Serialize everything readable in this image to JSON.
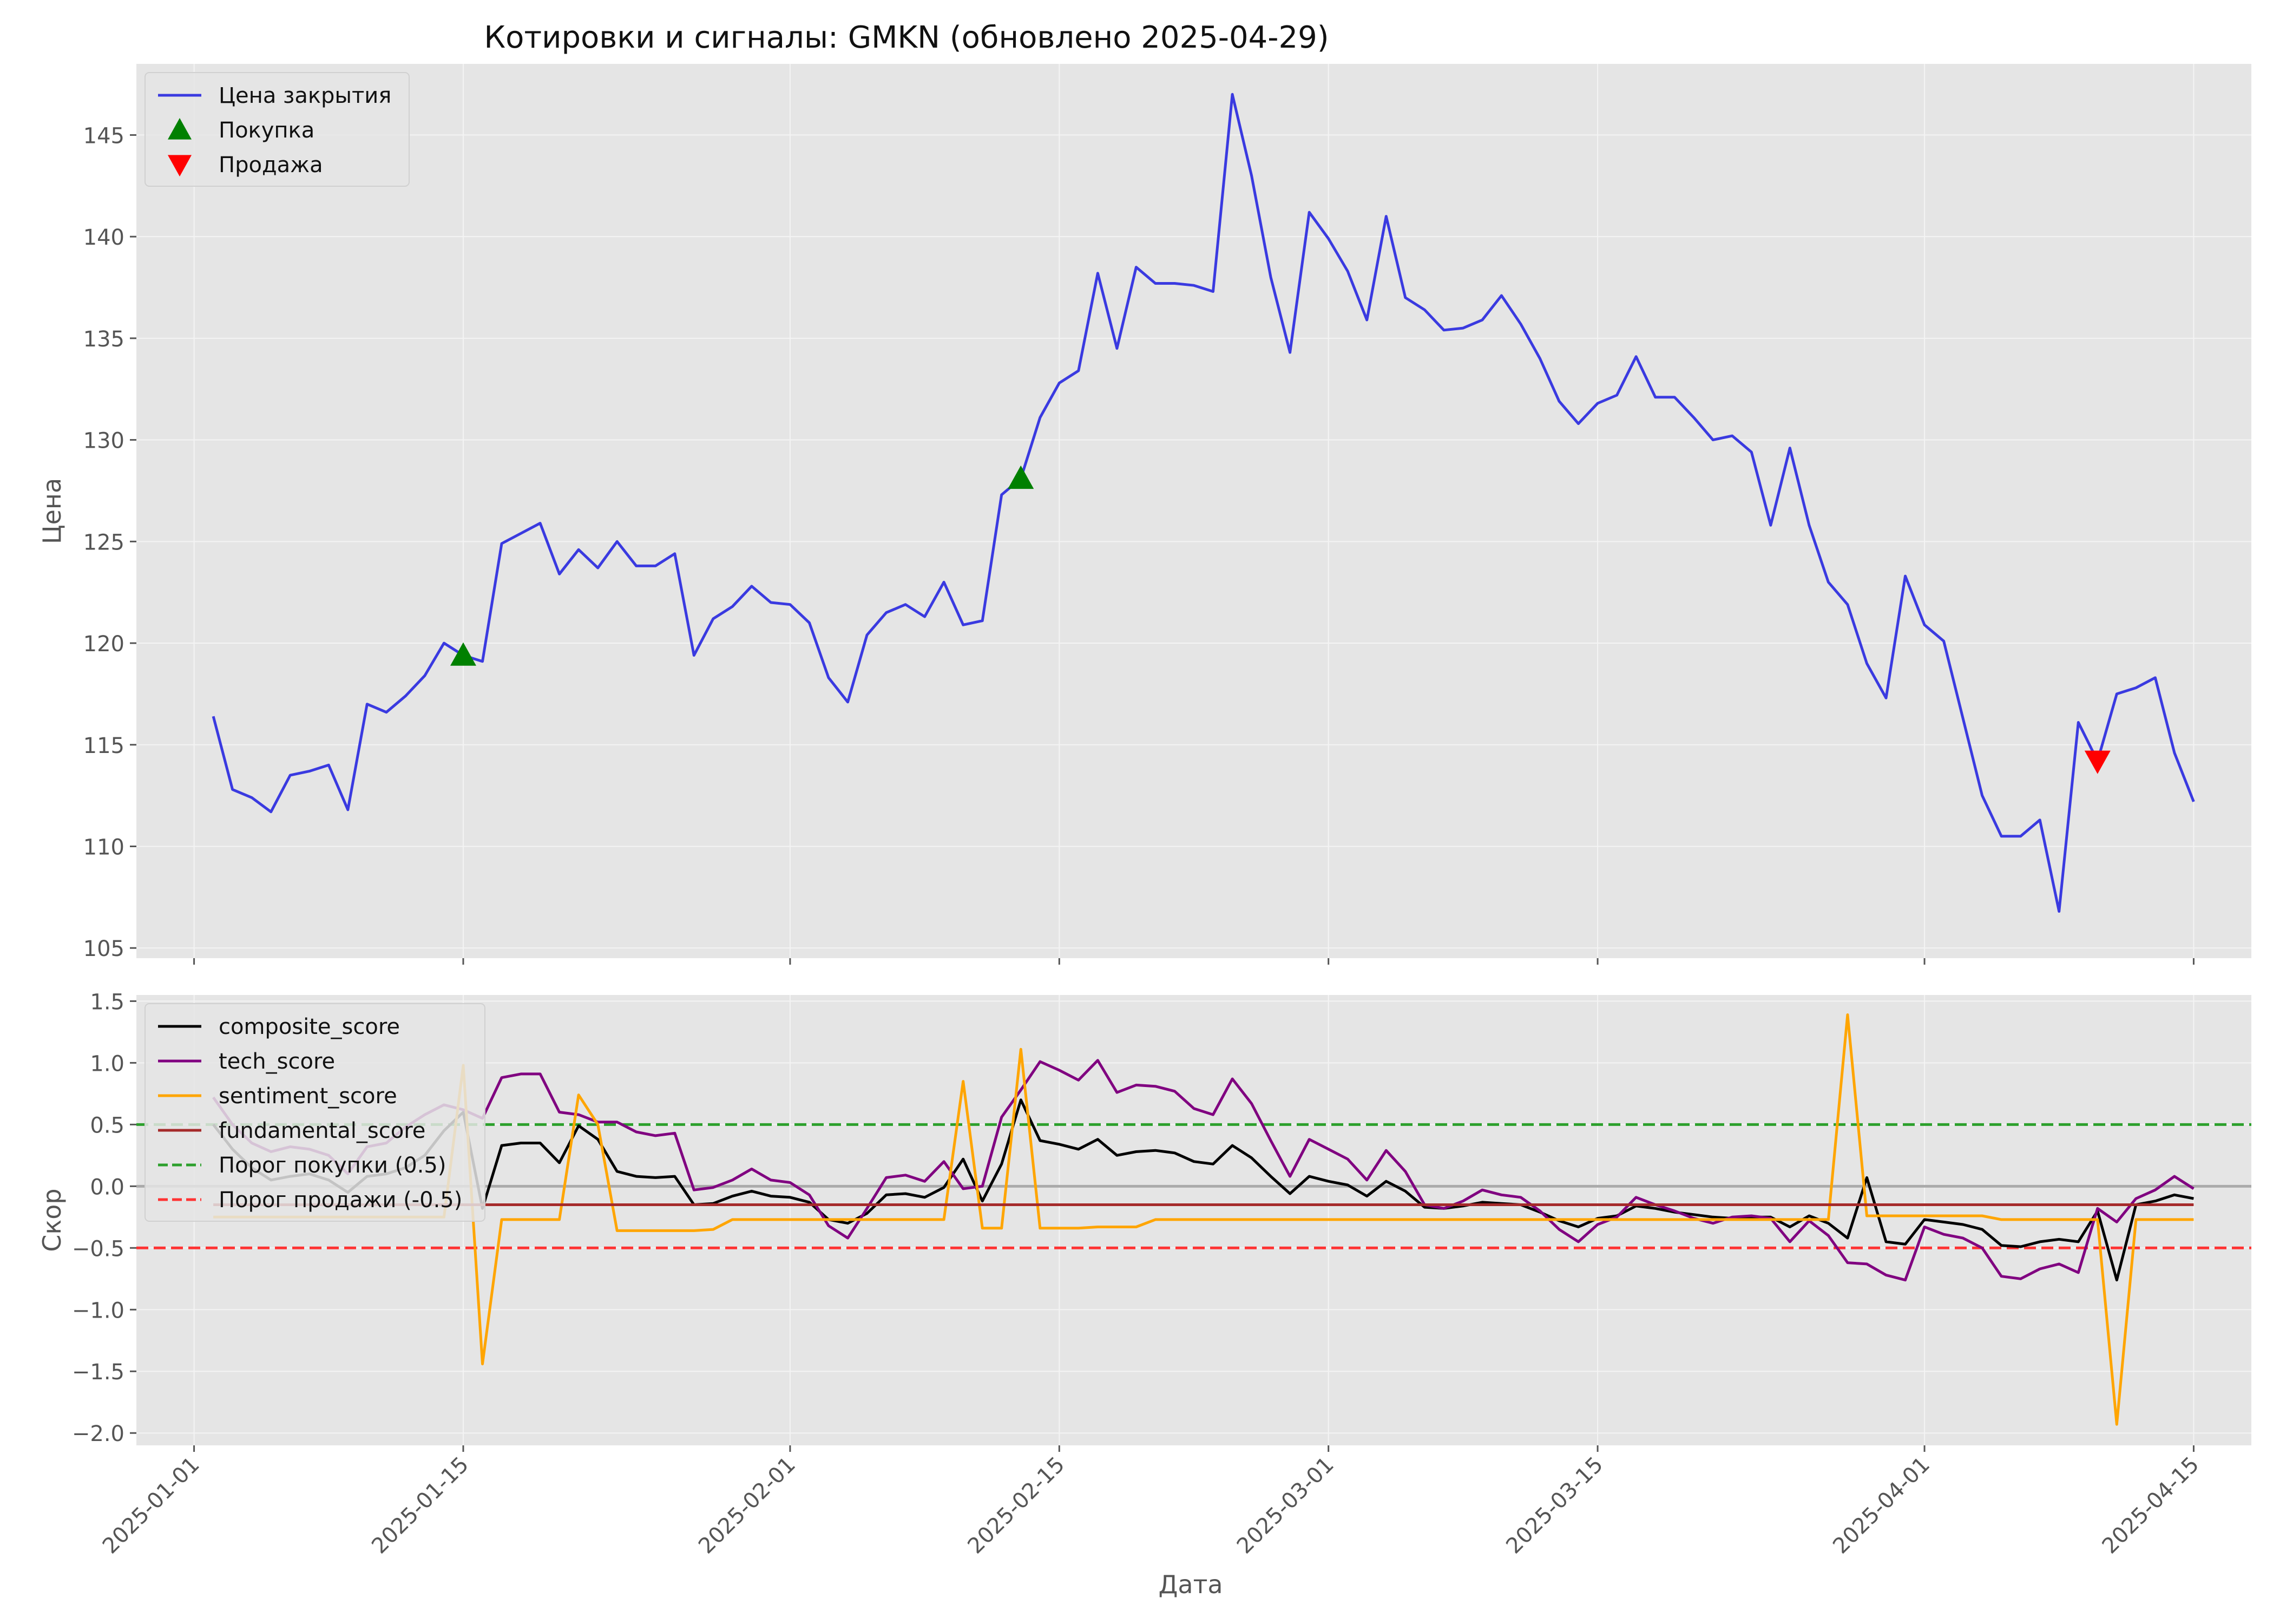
{
  "chart_data": {
    "title": "Котировки и сигналы: GMKN (обновлено 2025-04-29)",
    "x_axis": {
      "label": "Дата",
      "range": [
        "2024-12-29",
        "2025-04-18"
      ],
      "ticks": [
        "2025-01-01",
        "2025-01-15",
        "2025-02-01",
        "2025-02-15",
        "2025-03-01",
        "2025-03-15",
        "2025-04-01",
        "2025-04-15"
      ]
    },
    "style": {
      "grid": true,
      "background": "#e5e5e5",
      "grid_color": "#f4f4f4"
    },
    "panels": [
      {
        "id": "price",
        "type": "line",
        "ylabel": "Цена",
        "ylim": [
          104.5,
          148.5
        ],
        "yticks": [
          105,
          110,
          115,
          120,
          125,
          130,
          135,
          140,
          145
        ],
        "legend_position": "upper-left",
        "series": [
          {
            "name": "Цена закрытия",
            "color": "#3a3ae0",
            "x": [
              "2025-01-02",
              "2025-01-03",
              "2025-01-04",
              "2025-01-05",
              "2025-01-06",
              "2025-01-07",
              "2025-01-08",
              "2025-01-09",
              "2025-01-10",
              "2025-01-11",
              "2025-01-12",
              "2025-01-13",
              "2025-01-14",
              "2025-01-15",
              "2025-01-16",
              "2025-01-17",
              "2025-01-18",
              "2025-01-19",
              "2025-01-20",
              "2025-01-21",
              "2025-01-22",
              "2025-01-23",
              "2025-01-24",
              "2025-01-25",
              "2025-01-26",
              "2025-01-27",
              "2025-01-28",
              "2025-01-29",
              "2025-01-30",
              "2025-01-31",
              "2025-02-01",
              "2025-02-02",
              "2025-02-03",
              "2025-02-04",
              "2025-02-05",
              "2025-02-06",
              "2025-02-07",
              "2025-02-08",
              "2025-02-09",
              "2025-02-10",
              "2025-02-11",
              "2025-02-12",
              "2025-02-13",
              "2025-02-14",
              "2025-02-15",
              "2025-02-16",
              "2025-02-17",
              "2025-02-18",
              "2025-02-19",
              "2025-02-20",
              "2025-02-21",
              "2025-02-22",
              "2025-02-23",
              "2025-02-24",
              "2025-02-25",
              "2025-02-26",
              "2025-02-27",
              "2025-02-28",
              "2025-03-01",
              "2025-03-02",
              "2025-03-03",
              "2025-03-04",
              "2025-03-05",
              "2025-03-06",
              "2025-03-07",
              "2025-03-08",
              "2025-03-09",
              "2025-03-10",
              "2025-03-11",
              "2025-03-12",
              "2025-03-13",
              "2025-03-14",
              "2025-03-15",
              "2025-03-16",
              "2025-03-17",
              "2025-03-18",
              "2025-03-19",
              "2025-03-20",
              "2025-03-21",
              "2025-03-22",
              "2025-03-23",
              "2025-03-24",
              "2025-03-25",
              "2025-03-26",
              "2025-03-27",
              "2025-03-28",
              "2025-03-29",
              "2025-03-30",
              "2025-03-31",
              "2025-04-01",
              "2025-04-02",
              "2025-04-03",
              "2025-04-04",
              "2025-04-05",
              "2025-04-06",
              "2025-04-07",
              "2025-04-08",
              "2025-04-09",
              "2025-04-10",
              "2025-04-11",
              "2025-04-12",
              "2025-04-13",
              "2025-04-14",
              "2025-04-15"
            ],
            "y": [
              116.4,
              112.8,
              112.4,
              111.7,
              113.5,
              113.7,
              114.0,
              111.8,
              117.0,
              116.6,
              117.4,
              118.4,
              120.0,
              119.4,
              119.1,
              124.9,
              125.4,
              125.9,
              123.4,
              124.6,
              123.7,
              125.0,
              123.8,
              123.8,
              124.4,
              119.4,
              121.2,
              121.8,
              122.8,
              122.0,
              121.9,
              121.0,
              118.3,
              117.1,
              120.4,
              121.5,
              121.9,
              121.3,
              123.0,
              120.9,
              121.1,
              127.3,
              128.1,
              131.1,
              132.8,
              133.4,
              138.2,
              134.5,
              138.5,
              137.7,
              137.7,
              137.6,
              137.3,
              147.0,
              143.0,
              138.0,
              134.3,
              141.2,
              139.9,
              138.3,
              135.9,
              141.0,
              137.0,
              136.4,
              135.4,
              135.5,
              135.9,
              137.1,
              135.7,
              134.0,
              131.9,
              130.8,
              131.8,
              132.2,
              134.1,
              132.1,
              132.1,
              131.1,
              130.0,
              130.2,
              129.4,
              125.8,
              129.6,
              125.8,
              123.0,
              121.9,
              119.0,
              117.3,
              123.3,
              120.9,
              120.1,
              116.3,
              112.5,
              110.5,
              110.5,
              111.3,
              106.8,
              116.1,
              114.2,
              117.5,
              117.8,
              118.3,
              114.6,
              112.2
            ]
          }
        ],
        "markers": [
          {
            "name": "Покупка",
            "symbol": "triangle-up",
            "color": "#008000",
            "points": [
              {
                "x": "2025-01-15",
                "y": 119.4
              },
              {
                "x": "2025-02-13",
                "y": 128.1
              }
            ]
          },
          {
            "name": "Продажа",
            "symbol": "triangle-down",
            "color": "#ff0000",
            "points": [
              {
                "x": "2025-04-10",
                "y": 114.2
              }
            ]
          }
        ]
      },
      {
        "id": "scores",
        "type": "line",
        "ylabel": "Скор",
        "ylim": [
          -2.1,
          1.55
        ],
        "yticks": [
          -2.0,
          -1.5,
          -1.0,
          -0.5,
          0.0,
          0.5,
          1.0,
          1.5
        ],
        "ytick_labels": [
          "−2.0",
          "−1.5",
          "−1.0",
          "−0.5",
          "0.0",
          "0.5",
          "1.0",
          "1.5"
        ],
        "legend_position": "upper-left",
        "zero_line": {
          "y": 0,
          "color": "#aaaaaa"
        },
        "thresholds": [
          {
            "name": "Порог покупки (0.5)",
            "y": 0.5,
            "color": "#2ca02c"
          },
          {
            "name": "Порог продажи (-0.5)",
            "y": -0.5,
            "color": "#ff3333"
          }
        ],
        "series": [
          {
            "name": "composite_score",
            "color": "#000000",
            "y": [
              0.5,
              0.3,
              0.15,
              0.05,
              0.08,
              0.1,
              0.05,
              -0.05,
              0.08,
              0.1,
              0.15,
              0.25,
              0.45,
              0.6,
              -0.18,
              0.33,
              0.35,
              0.35,
              0.19,
              0.49,
              0.38,
              0.12,
              0.08,
              0.07,
              0.08,
              -0.15,
              -0.14,
              -0.08,
              -0.04,
              -0.08,
              -0.09,
              -0.13,
              -0.27,
              -0.3,
              -0.22,
              -0.07,
              -0.06,
              -0.09,
              -0.01,
              0.22,
              -0.12,
              0.18,
              0.7,
              0.37,
              0.34,
              0.3,
              0.38,
              0.25,
              0.28,
              0.29,
              0.27,
              0.2,
              0.18,
              0.33,
              0.23,
              0.08,
              -0.06,
              0.08,
              0.04,
              0.01,
              -0.08,
              0.04,
              -0.04,
              -0.17,
              -0.18,
              -0.16,
              -0.13,
              -0.14,
              -0.15,
              -0.21,
              -0.28,
              -0.33,
              -0.26,
              -0.24,
              -0.16,
              -0.18,
              -0.21,
              -0.23,
              -0.25,
              -0.26,
              -0.25,
              -0.25,
              -0.33,
              -0.24,
              -0.3,
              -0.42,
              0.07,
              -0.45,
              -0.47,
              -0.27,
              -0.29,
              -0.31,
              -0.35,
              -0.48,
              -0.49,
              -0.45,
              -0.43,
              -0.45,
              -0.2,
              -0.76,
              -0.15,
              -0.12,
              -0.07,
              -0.1,
              -0.16
            ]
          },
          {
            "name": "tech_score",
            "color": "#800080",
            "y": [
              0.72,
              0.5,
              0.35,
              0.28,
              0.32,
              0.3,
              0.25,
              0.1,
              0.32,
              0.35,
              0.48,
              0.58,
              0.66,
              0.62,
              0.55,
              0.88,
              0.91,
              0.91,
              0.6,
              0.58,
              0.52,
              0.52,
              0.44,
              0.41,
              0.43,
              -0.03,
              -0.01,
              0.05,
              0.14,
              0.05,
              0.03,
              -0.07,
              -0.32,
              -0.42,
              -0.18,
              0.07,
              0.09,
              0.04,
              0.2,
              -0.02,
              0.0,
              0.56,
              0.78,
              1.01,
              0.94,
              0.86,
              1.02,
              0.76,
              0.82,
              0.81,
              0.77,
              0.63,
              0.58,
              0.87,
              0.67,
              0.37,
              0.08,
              0.38,
              0.3,
              0.22,
              0.05,
              0.29,
              0.12,
              -0.15,
              -0.18,
              -0.12,
              -0.03,
              -0.07,
              -0.09,
              -0.2,
              -0.35,
              -0.45,
              -0.31,
              -0.25,
              -0.09,
              -0.15,
              -0.2,
              -0.26,
              -0.3,
              -0.25,
              -0.24,
              -0.26,
              -0.45,
              -0.28,
              -0.4,
              -0.62,
              -0.63,
              -0.72,
              -0.76,
              -0.33,
              -0.39,
              -0.42,
              -0.5,
              -0.73,
              -0.75,
              -0.67,
              -0.63,
              -0.7,
              -0.18,
              -0.29,
              -0.1,
              -0.03,
              0.08,
              -0.02,
              -0.12
            ]
          },
          {
            "name": "sentiment_score",
            "color": "#ffa500",
            "y": [
              -0.25,
              -0.25,
              -0.25,
              -0.25,
              -0.25,
              -0.25,
              -0.25,
              -0.25,
              -0.25,
              -0.25,
              -0.25,
              -0.25,
              -0.25,
              0.98,
              -1.44,
              -0.27,
              -0.27,
              -0.27,
              -0.27,
              0.74,
              0.5,
              -0.36,
              -0.36,
              -0.36,
              -0.36,
              -0.36,
              -0.35,
              -0.27,
              -0.27,
              -0.27,
              -0.27,
              -0.27,
              -0.27,
              -0.27,
              -0.27,
              -0.27,
              -0.27,
              -0.27,
              -0.27,
              0.85,
              -0.34,
              -0.34,
              1.11,
              -0.34,
              -0.34,
              -0.34,
              -0.33,
              -0.33,
              -0.33,
              -0.27,
              -0.27,
              -0.27,
              -0.27,
              -0.27,
              -0.27,
              -0.27,
              -0.27,
              -0.27,
              -0.27,
              -0.27,
              -0.27,
              -0.27,
              -0.27,
              -0.27,
              -0.27,
              -0.27,
              -0.27,
              -0.27,
              -0.27,
              -0.27,
              -0.27,
              -0.27,
              -0.27,
              -0.27,
              -0.27,
              -0.27,
              -0.27,
              -0.27,
              -0.27,
              -0.27,
              -0.27,
              -0.27,
              -0.27,
              -0.27,
              -0.27,
              1.39,
              -0.24,
              -0.24,
              -0.24,
              -0.24,
              -0.24,
              -0.24,
              -0.24,
              -0.27,
              -0.27,
              -0.27,
              -0.27,
              -0.27,
              -0.27,
              -1.93,
              -0.27,
              -0.27,
              -0.27,
              -0.27,
              -0.27
            ]
          },
          {
            "name": "fundamental_score",
            "color": "#a52a2a",
            "y": [
              -0.15,
              -0.15,
              -0.15,
              -0.15,
              -0.15,
              -0.15,
              -0.15,
              -0.15,
              -0.15,
              -0.15,
              -0.15,
              -0.15,
              -0.15,
              -0.15,
              -0.15,
              -0.15,
              -0.15,
              -0.15,
              -0.15,
              -0.15,
              -0.15,
              -0.15,
              -0.15,
              -0.15,
              -0.15,
              -0.15,
              -0.15,
              -0.15,
              -0.15,
              -0.15,
              -0.15,
              -0.15,
              -0.15,
              -0.15,
              -0.15,
              -0.15,
              -0.15,
              -0.15,
              -0.15,
              -0.15,
              -0.15,
              -0.15,
              -0.15,
              -0.15,
              -0.15,
              -0.15,
              -0.15,
              -0.15,
              -0.15,
              -0.15,
              -0.15,
              -0.15,
              -0.15,
              -0.15,
              -0.15,
              -0.15,
              -0.15,
              -0.15,
              -0.15,
              -0.15,
              -0.15,
              -0.15,
              -0.15,
              -0.15,
              -0.15,
              -0.15,
              -0.15,
              -0.15,
              -0.15,
              -0.15,
              -0.15,
              -0.15,
              -0.15,
              -0.15,
              -0.15,
              -0.15,
              -0.15,
              -0.15,
              -0.15,
              -0.15,
              -0.15,
              -0.15,
              -0.15,
              -0.15,
              -0.15,
              -0.15,
              -0.15,
              -0.15,
              -0.15,
              -0.15,
              -0.15,
              -0.15,
              -0.15,
              -0.15,
              -0.15,
              -0.15,
              -0.15,
              -0.15,
              -0.15,
              -0.15,
              -0.15,
              -0.15,
              -0.15,
              -0.15,
              -0.15
            ]
          }
        ]
      }
    ]
  }
}
